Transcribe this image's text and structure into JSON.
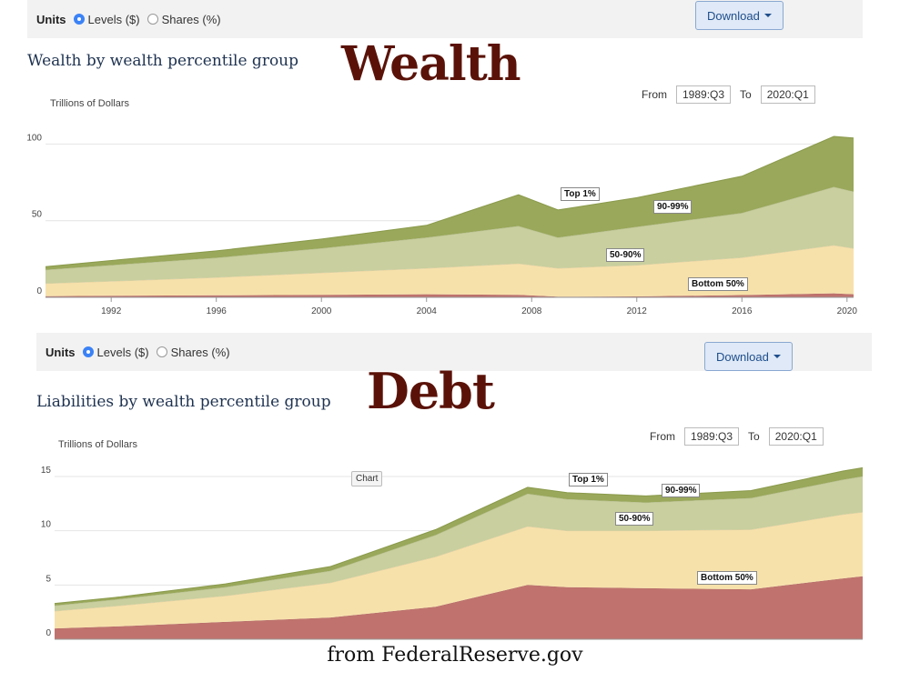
{
  "panels": [
    {
      "units_label": "Units",
      "option_levels": "Levels ($)",
      "option_shares": "Shares (%)",
      "download_label": "Download",
      "title": "Wealth by wealth percentile group",
      "big_label": "Wealth",
      "from_label": "From",
      "from_value": "1989:Q3",
      "to_label": "To",
      "to_value": "2020:Q1",
      "unit_label": "Trillions of Dollars"
    },
    {
      "units_label": "Units",
      "option_levels": "Levels ($)",
      "option_shares": "Shares (%)",
      "download_label": "Download",
      "title": "Liabilities by wealth percentile group",
      "big_label": "Debt",
      "from_label": "From",
      "from_value": "1989:Q3",
      "to_label": "To",
      "to_value": "2020:Q1",
      "unit_label": "Trillions of Dollars",
      "tooltip": "Chart"
    }
  ],
  "footer": "from FederalReserve.gov",
  "colors": {
    "bottom50": "#c0736e",
    "p50_90": "#f7e1ab",
    "p90_99": "#c9cf9e",
    "top1": "#99a85a",
    "top1_edge": "#8a9a4c"
  },
  "chart_data": [
    {
      "type": "area",
      "stacked": true,
      "title": "Wealth by wealth percentile group",
      "ylabel": "Trillions of Dollars",
      "ylim": [
        0,
        105
      ],
      "xlim": [
        1989.5,
        2020.25
      ],
      "yticks": [
        0,
        50,
        100
      ],
      "xticks": [
        "1992",
        "1996",
        "2000",
        "2004",
        "2008",
        "2012",
        "2016",
        "2020"
      ],
      "grid": true,
      "x": [
        1989.5,
        1992,
        1996,
        2000,
        2004,
        2007.5,
        2009,
        2012,
        2016,
        2019.5,
        2020.25
      ],
      "series": [
        {
          "name": "Bottom 50%",
          "values": [
            0.8,
            1.0,
            1.3,
            1.6,
            2.0,
            1.6,
            0.4,
            0.6,
            1.5,
            2.6,
            2.0
          ]
        },
        {
          "name": "50-90%",
          "values": [
            8.2,
            9.5,
            11.7,
            14.4,
            17.0,
            20.4,
            18.6,
            20.4,
            24.5,
            31.4,
            30.0
          ]
        },
        {
          "name": "90-99%",
          "values": [
            9.0,
            10.5,
            12.8,
            16.0,
            20.0,
            24.5,
            20.0,
            25.0,
            29.0,
            38.0,
            37.0
          ]
        },
        {
          "name": "Top 1%",
          "values": [
            2.0,
            3.0,
            4.5,
            6.0,
            8.0,
            20.5,
            18.0,
            19.0,
            24.0,
            33.0,
            35.0
          ]
        }
      ],
      "labels": [
        "Top 1%",
        "90-99%",
        "50-90%",
        "Bottom 50%"
      ]
    },
    {
      "type": "area",
      "stacked": true,
      "title": "Liabilities by wealth percentile group",
      "ylabel": "Trillions of Dollars",
      "ylim": [
        0,
        16
      ],
      "xlim": [
        1989.5,
        2020.25
      ],
      "yticks": [
        0,
        5,
        10,
        15
      ],
      "grid": true,
      "x": [
        1989.5,
        1992,
        1996,
        2000,
        2004,
        2007.5,
        2009,
        2012,
        2016,
        2019.5,
        2020.25
      ],
      "series": [
        {
          "name": "Bottom 50%",
          "values": [
            1.0,
            1.2,
            1.6,
            2.0,
            3.0,
            5.0,
            4.8,
            4.7,
            4.6,
            5.6,
            5.8
          ]
        },
        {
          "name": "50-90%",
          "values": [
            1.6,
            1.9,
            2.4,
            3.2,
            4.6,
            5.4,
            5.2,
            5.3,
            5.5,
            5.9,
            5.9
          ]
        },
        {
          "name": "90-99%",
          "values": [
            0.5,
            0.6,
            0.8,
            1.1,
            2.0,
            3.0,
            2.9,
            2.6,
            2.9,
            3.2,
            3.3
          ]
        },
        {
          "name": "Top 1%",
          "values": [
            0.2,
            0.2,
            0.3,
            0.4,
            0.5,
            0.6,
            0.6,
            0.6,
            0.7,
            0.8,
            0.8
          ]
        }
      ],
      "labels": [
        "Top 1%",
        "90-99%",
        "50-90%",
        "Bottom 50%"
      ]
    }
  ]
}
